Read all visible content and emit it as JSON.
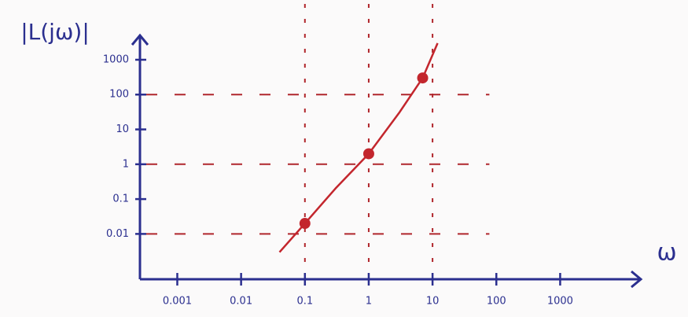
{
  "chart_data": {
    "type": "line",
    "y_label": "|L(jω)|",
    "x_label": "ω",
    "xscale": "log",
    "yscale": "log",
    "xlim": [
      0.00026,
      12000
    ],
    "ylim": [
      0.0005,
      5000
    ],
    "xticks": [
      0.001,
      0.01,
      0.1,
      1,
      10,
      100,
      1000
    ],
    "yticks": [
      0.01,
      0.1,
      1,
      10,
      100,
      1000
    ],
    "axis_color": "#2b2f8f",
    "series": [
      {
        "color": "#c3262d",
        "x": [
          0.04,
          0.1,
          0.3,
          1,
          3,
          7,
          12
        ],
        "values": [
          0.003,
          0.02,
          0.2,
          2,
          30,
          300,
          3000
        ]
      }
    ],
    "markers": {
      "color": "#c3262d",
      "x": [
        0.1,
        1,
        7
      ],
      "values": [
        0.02,
        2,
        300
      ]
    },
    "guides": {
      "color": "#b0262c",
      "x": [
        0.1,
        1,
        10
      ],
      "y": [
        0.01,
        1,
        100
      ]
    }
  }
}
